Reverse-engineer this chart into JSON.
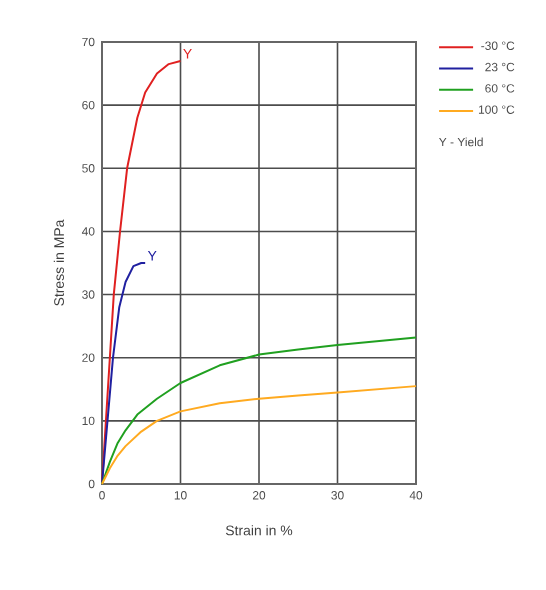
{
  "chart_data": {
    "type": "line",
    "xlabel": "Strain in %",
    "ylabel": "Stress in MPa",
    "xlim": [
      0,
      40
    ],
    "ylim": [
      0,
      70
    ],
    "xticks": [
      0,
      10,
      20,
      30,
      40
    ],
    "yticks": [
      0,
      10,
      20,
      30,
      40,
      50,
      60,
      70
    ],
    "grid": true,
    "legend": "top right",
    "series": [
      {
        "name": "-30 °C",
        "color": "#e02020",
        "x": [
          0,
          0.5,
          1,
          1.5,
          2.3,
          3.2,
          4.5,
          5.5,
          7,
          8.5,
          10
        ],
        "values": [
          0,
          10,
          20,
          30,
          40,
          50,
          58,
          62,
          65,
          66.5,
          67
        ]
      },
      {
        "name": "23 °C",
        "color": "#2020a0",
        "x": [
          0,
          0.7,
          1.4,
          2.2,
          3,
          4,
          5,
          5.5
        ],
        "values": [
          0,
          10,
          20,
          28,
          32,
          34.5,
          35,
          35
        ]
      },
      {
        "name": "60 °C",
        "color": "#20a020",
        "x": [
          0,
          1,
          2,
          3,
          4.5,
          7,
          10,
          15,
          20,
          25,
          30,
          35,
          40
        ],
        "values": [
          0,
          3.5,
          6.5,
          8.5,
          11,
          13.5,
          16,
          18.8,
          20.5,
          21.3,
          22,
          22.6,
          23.2
        ]
      },
      {
        "name": "100 °C",
        "color": "#ffaa20",
        "x": [
          0,
          1,
          2,
          3,
          5,
          7,
          10,
          15,
          20,
          25,
          30,
          35,
          40
        ],
        "values": [
          0,
          2.5,
          4.5,
          6,
          8.3,
          10,
          11.5,
          12.8,
          13.5,
          14,
          14.5,
          15,
          15.5
        ]
      }
    ],
    "annotations": [
      {
        "text": "Y",
        "x": 10,
        "y": 67
      },
      {
        "text": "Y",
        "x": 5.5,
        "y": 35
      },
      "Y - Yield"
    ]
  }
}
